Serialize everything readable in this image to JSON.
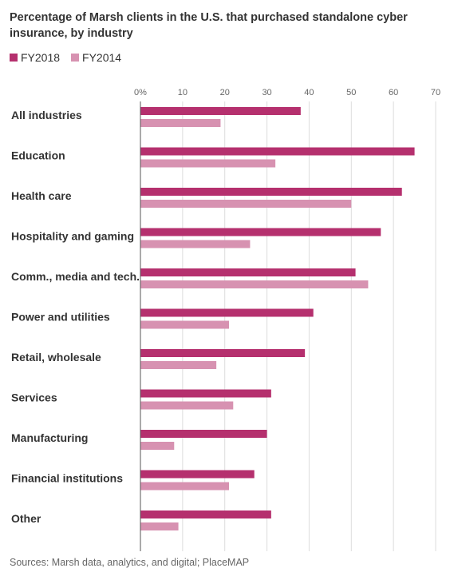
{
  "title": "Percentage of Marsh clients in the U.S. that purchased standalone cyber insurance, by industry",
  "source": "Sources: Marsh data, analytics, and digital; PlaceMAP",
  "chart_data": {
    "type": "bar",
    "orientation": "horizontal",
    "title": "Percentage of Marsh clients in the U.S. that purchased standalone cyber insurance, by industry",
    "xlabel": "",
    "ylabel": "",
    "xlim": [
      0,
      70
    ],
    "x_ticks": [
      "0%",
      "10",
      "20",
      "30",
      "40",
      "50",
      "60",
      "70"
    ],
    "x_tick_values": [
      0,
      10,
      20,
      30,
      40,
      50,
      60,
      70
    ],
    "grid": true,
    "legend_position": "top-left",
    "categories": [
      "All industries",
      "Education",
      "Health care",
      "Hospitality and gaming",
      "Comm., media and tech.",
      "Power and utilities",
      "Retail, wholesale",
      "Services",
      "Manufacturing",
      "Financial institutions",
      "Other"
    ],
    "series": [
      {
        "name": "FY2018",
        "color": "#b5306e",
        "values": [
          38,
          65,
          62,
          57,
          51,
          41,
          39,
          31,
          30,
          27,
          31
        ]
      },
      {
        "name": "FY2014",
        "color": "#d792b1",
        "values": [
          19,
          32,
          50,
          26,
          54,
          21,
          18,
          22,
          8,
          21,
          9
        ]
      }
    ]
  }
}
